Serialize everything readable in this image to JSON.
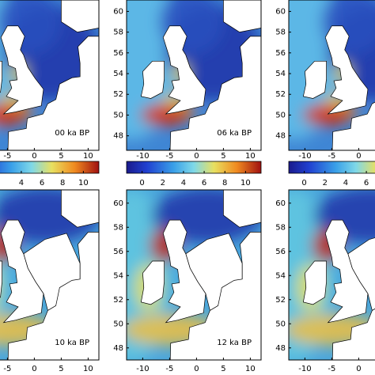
{
  "axes": {
    "xlim": [
      -13,
      12
    ],
    "top_ylim": [
      61.1,
      46.6
    ],
    "bottom_ylim": [
      61.1,
      47
    ],
    "clim": [
      -1.5,
      11.5
    ]
  },
  "panels": [
    {
      "label": "00 ka BP",
      "xticks": [
        -5,
        0,
        5,
        10
      ],
      "colorbar_ticks": [
        4,
        6,
        8,
        10
      ]
    },
    {
      "label": "06 ka BP",
      "xticks": [
        -10,
        -5,
        0,
        5,
        10
      ],
      "yticks": [
        60,
        58,
        56,
        54,
        52,
        50,
        48
      ],
      "colorbar_ticks": [
        0,
        2,
        4,
        6,
        8,
        10
      ]
    },
    {
      "xticks": [
        -10,
        -5,
        0
      ],
      "yticks": [
        60,
        58,
        56,
        54,
        52,
        50,
        48
      ],
      "colorbar_ticks": [
        0,
        2,
        4,
        6
      ]
    },
    {
      "label": "10 ka BP",
      "xticks": [
        -5,
        0,
        5,
        10
      ]
    },
    {
      "label": "12 ka BP",
      "xticks": [
        -10,
        -5,
        0,
        5,
        10
      ],
      "yticks": [
        60,
        58,
        56,
        54,
        52,
        50,
        48
      ]
    },
    {
      "xticks": [
        -10,
        -5,
        0
      ],
      "yticks": [
        60,
        58,
        56,
        54,
        52,
        50,
        48
      ]
    }
  ]
}
